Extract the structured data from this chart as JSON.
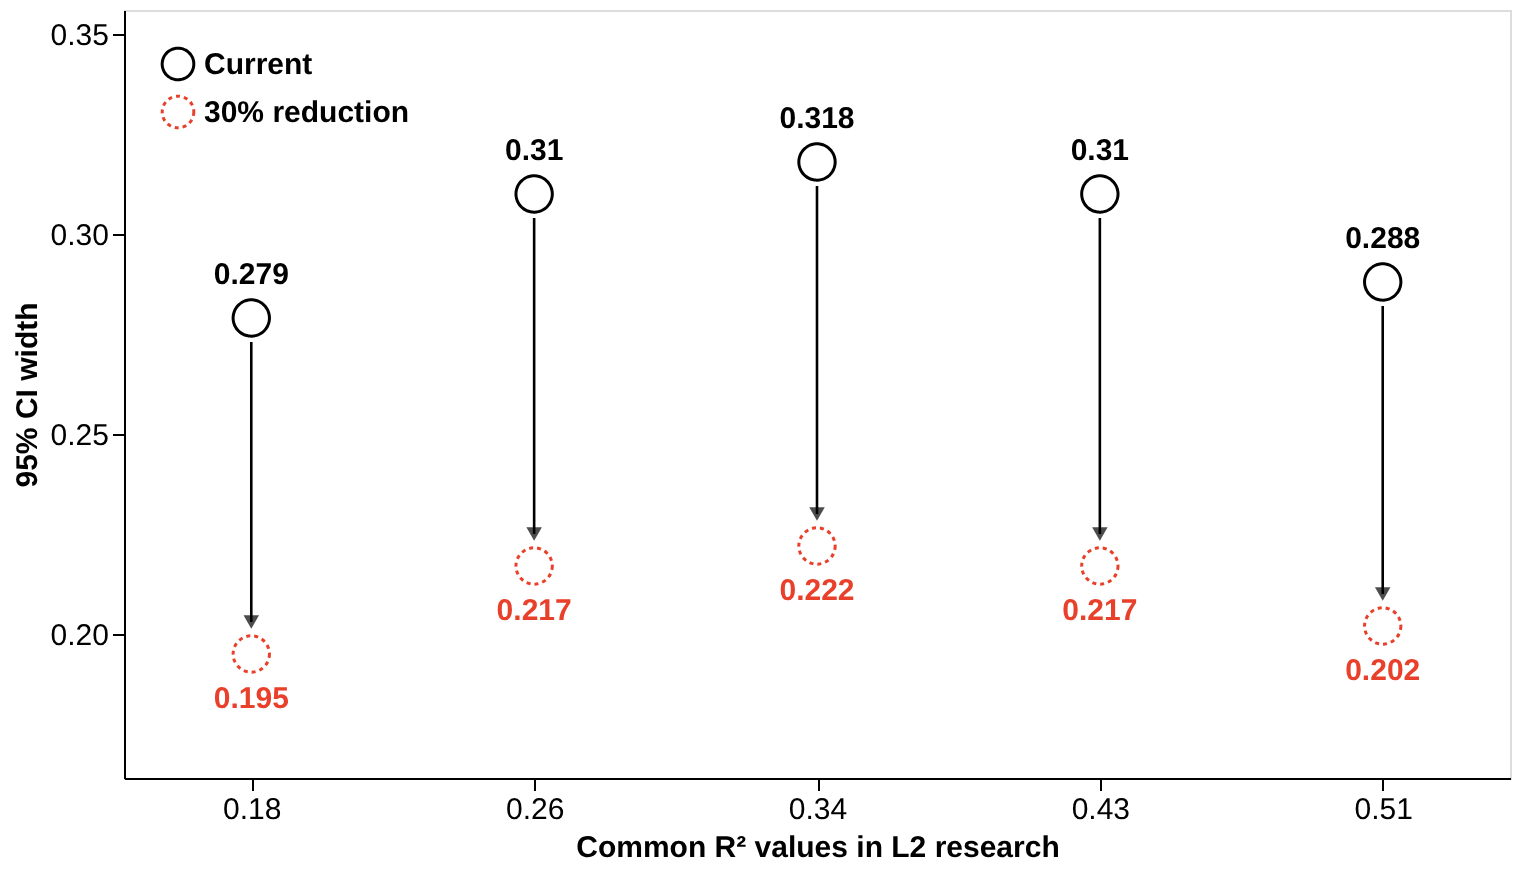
{
  "chart_data": {
    "type": "scatter",
    "xlabel": "Common R² values in L2 research",
    "ylabel": "95% CI width",
    "categories": [
      "0.18",
      "0.26",
      "0.34",
      "0.43",
      "0.51"
    ],
    "series": [
      {
        "name": "Current",
        "color": "#000000",
        "values": [
          0.279,
          0.31,
          0.318,
          0.31,
          0.288
        ],
        "line_style": "solid"
      },
      {
        "name": "30% reduction",
        "color": "#e8402a",
        "values": [
          0.195,
          0.217,
          0.222,
          0.217,
          0.202
        ],
        "line_style": "dotted"
      }
    ],
    "ylim": [
      0.164,
      0.356
    ],
    "yticks": [
      {
        "value": 0.2,
        "label": "0.20"
      },
      {
        "value": 0.25,
        "label": "0.25"
      },
      {
        "value": 0.3,
        "label": "0.30"
      },
      {
        "value": 0.35,
        "label": "0.35"
      }
    ],
    "data_labels": true,
    "legend": "top left",
    "grid": false,
    "marker": "circle"
  }
}
